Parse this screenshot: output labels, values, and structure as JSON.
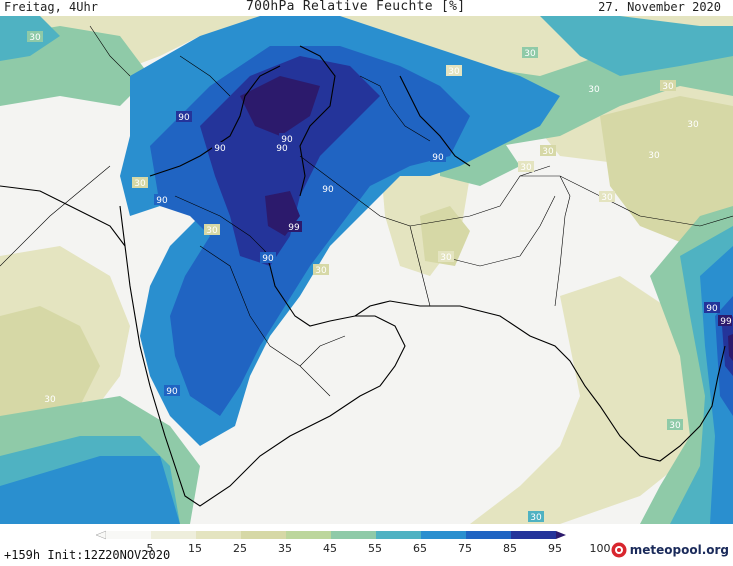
{
  "header": {
    "left": "Freitag, 4Uhr",
    "title": "700hPa Relative Feuchte [%]",
    "date": "27. November 2020"
  },
  "footer": {
    "run_info": "+159h Init:12Z20NOV2020",
    "brand": "meteopool.org"
  },
  "legend": {
    "ticks": [
      "5",
      "15",
      "25",
      "35",
      "45",
      "55",
      "65",
      "75",
      "85",
      "95",
      "100"
    ],
    "colors": [
      "#f8f8f6",
      "#eeeedc",
      "#e4e4c0",
      "#d6d8a6",
      "#bcd69c",
      "#8fcaa8",
      "#4fb2c2",
      "#2a8fcf",
      "#2064c2",
      "#24349a",
      "#2c1a6c"
    ]
  },
  "contour_labels": [
    "30",
    "90",
    "99"
  ]
}
